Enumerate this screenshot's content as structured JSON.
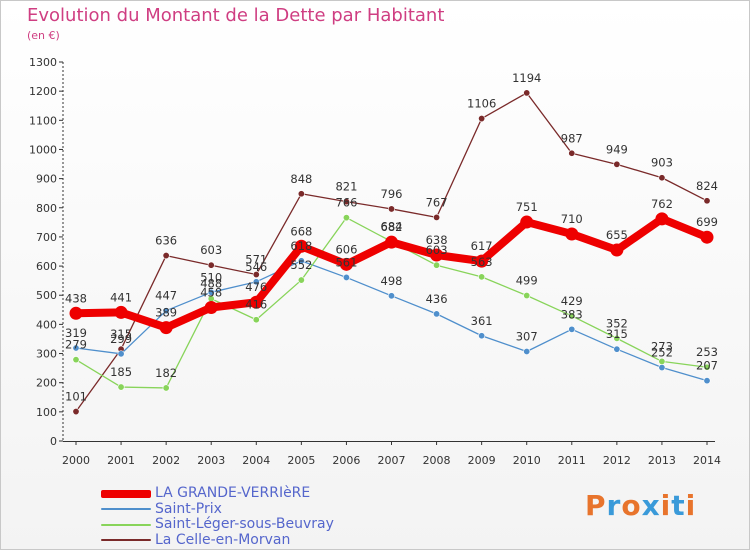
{
  "header": {
    "title": "Evolution du Montant de la Dette par Habitant",
    "subtitle": "(en €)"
  },
  "brand": {
    "text": "Proxiti",
    "colors": [
      "#e8742c",
      "#3a9ad9",
      "#e8742c",
      "#3a9ad9",
      "#e8742c",
      "#3a9ad9",
      "#e8742c"
    ]
  },
  "chart_data": {
    "type": "line",
    "title": "Evolution du Montant de la Dette par Habitant",
    "ylabel": "(en €)",
    "xlabel": "",
    "x": [
      "2000",
      "2001",
      "2002",
      "2003",
      "2004",
      "2005",
      "2006",
      "2007",
      "2008",
      "2009",
      "2010",
      "2011",
      "2012",
      "2013",
      "2014"
    ],
    "ylim": [
      0,
      1300
    ],
    "yticks": [
      0,
      100,
      200,
      300,
      400,
      500,
      600,
      700,
      800,
      900,
      1000,
      1100,
      1200,
      1300
    ],
    "grid": false,
    "legend_position": "bottom-left",
    "series": [
      {
        "name": "LA GRANDE-VERRIèRE",
        "color": "#ee0000",
        "values": [
          438,
          441,
          389,
          458,
          476,
          668,
          606,
          682,
          638,
          617,
          751,
          710,
          655,
          762,
          699
        ]
      },
      {
        "name": "Saint-Prix",
        "color": "#4f8fcc",
        "values": [
          319,
          299,
          447,
          510,
          546,
          618,
          561,
          498,
          436,
          361,
          307,
          383,
          315,
          252,
          207
        ]
      },
      {
        "name": "Saint-Léger-sous-Beuvray",
        "color": "#88d45a",
        "values": [
          279,
          185,
          182,
          488,
          416,
          552,
          766,
          684,
          603,
          563,
          499,
          429,
          352,
          273,
          253
        ]
      },
      {
        "name": "La Celle-en-Morvan",
        "color": "#7a2a2a",
        "values": [
          101,
          315,
          636,
          603,
          571,
          848,
          821,
          796,
          767,
          1106,
          1194,
          987,
          949,
          903,
          824
        ]
      }
    ]
  }
}
